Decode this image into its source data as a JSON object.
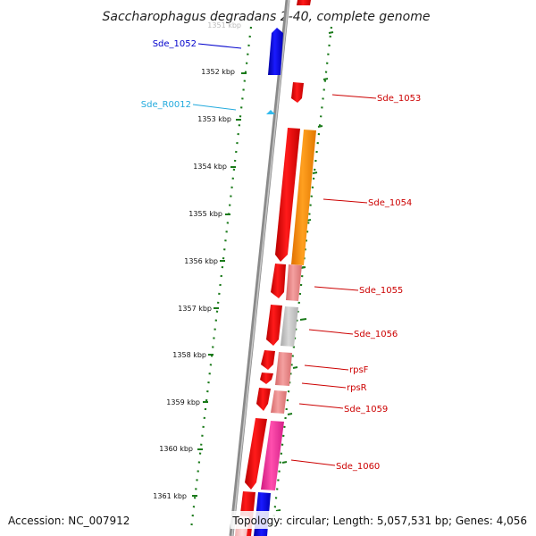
{
  "title": "Saccharophagus degradans 2-40, complete genome",
  "footer": {
    "accession": "Accession: NC_007912",
    "topology": "Topology: circular; Length: 5,057,531 bp; Genes: 4,056"
  },
  "ruler": {
    "partial_label": "1351 kbp",
    "ticks": [
      "1352 kbp",
      "1353 kbp",
      "1354 kbp",
      "1355 kbp",
      "1356 kbp",
      "1357 kbp",
      "1358 kbp",
      "1359 kbp",
      "1360 kbp",
      "1361 kbp"
    ]
  },
  "genes": [
    {
      "label": "Sde_1052",
      "color": "#0000cc",
      "side": "left"
    },
    {
      "label": "Sde_R0012",
      "color": "#22aadd",
      "side": "left"
    },
    {
      "label": "Sde_1053",
      "color": "#cc0000",
      "side": "right"
    },
    {
      "label": "Sde_1054",
      "color": "#cc0000",
      "side": "right"
    },
    {
      "label": "Sde_1055",
      "color": "#cc0000",
      "side": "right"
    },
    {
      "label": "Sde_1056",
      "color": "#cc0000",
      "side": "right"
    },
    {
      "label": "rpsF",
      "color": "#cc0000",
      "side": "right"
    },
    {
      "label": "rpsR",
      "color": "#cc0000",
      "side": "right"
    },
    {
      "label": "Sde_1059",
      "color": "#cc0000",
      "side": "right"
    },
    {
      "label": "Sde_1060",
      "color": "#cc0000",
      "side": "right"
    }
  ],
  "colors": {
    "backbone": "#8a8a8a",
    "ticks": "#1a7a1a",
    "red": "#ee0000",
    "blue": "#0000dd",
    "orange": "#ff8c00",
    "pink": "#e88a8a",
    "grey": "#bbbbbb",
    "magenta": "#ee3399",
    "cyan": "#33bbee"
  }
}
